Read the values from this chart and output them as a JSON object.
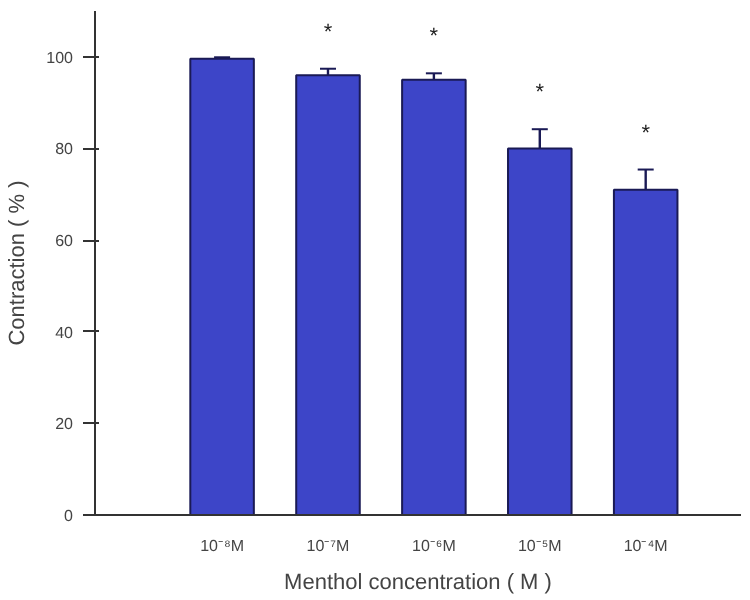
{
  "chart_data": {
    "type": "bar",
    "xlabel": "Menthol concentration ( M )",
    "ylabel": "Contraction ( % )",
    "categories": [
      "10⁻⁸M",
      "10⁻⁷M",
      "10⁻⁶M",
      "10⁻⁵M",
      "10⁻⁴M"
    ],
    "values": [
      99.6,
      96,
      95,
      80,
      71
    ],
    "errors": [
      0.3,
      1.4,
      1.4,
      4.2,
      4.4
    ],
    "color": "#3d45c8",
    "value_labels": [
      null,
      "*",
      "*",
      "*",
      "*"
    ],
    "ylim": [
      0,
      110
    ],
    "yticks": [
      0,
      20,
      40,
      60,
      80,
      100
    ],
    "grid": false
  }
}
